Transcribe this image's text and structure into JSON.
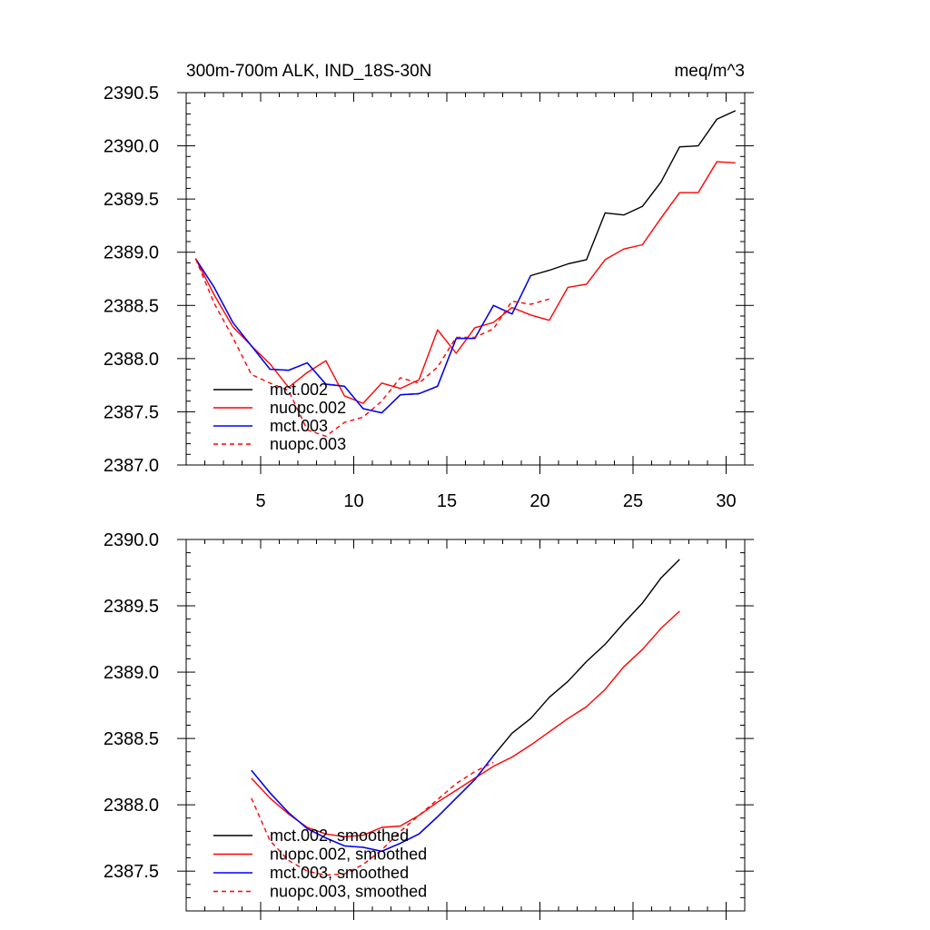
{
  "title_left": "300m-700m ALK, IND_18S-30N",
  "title_right": "meq/m^3",
  "chart_data": [
    {
      "type": "line",
      "title": "300m-700m ALK, IND_18S-30N",
      "units": "meq/m^3",
      "xlim": [
        1,
        31
      ],
      "ylim": [
        2387.0,
        2390.5
      ],
      "xticks": [
        5,
        10,
        15,
        20,
        25,
        30
      ],
      "xtick_labels": [
        "5",
        "10",
        "15",
        "20",
        "25",
        "30"
      ],
      "yticks": [
        2387.0,
        2387.5,
        2388.0,
        2388.5,
        2389.0,
        2389.5,
        2390.0,
        2390.5
      ],
      "ytick_labels": [
        "2387.0",
        "2387.5",
        "2388.0",
        "2388.5",
        "2389.0",
        "2389.5",
        "2390.0",
        "2390.5"
      ],
      "legend_position": "bottom-left",
      "series": [
        {
          "name": "mct.002",
          "color": "#000000",
          "dash": "solid",
          "x": [
            1.5,
            2.5,
            3.5,
            4.5,
            5.5,
            6.5,
            7.5,
            8.5,
            9.5,
            10.5,
            11.5,
            12.5,
            13.5,
            14.5,
            15.5,
            16.5,
            17.5,
            18.5,
            19.5,
            20.5,
            21.5,
            22.5,
            23.5,
            24.5,
            25.5,
            26.5,
            27.5,
            28.5,
            29.5,
            30.5
          ],
          "y": [
            2388.94,
            2388.67,
            2388.34,
            2388.12,
            2387.9,
            2387.89,
            2387.96,
            2387.76,
            2387.74,
            2387.53,
            2387.49,
            2387.66,
            2387.67,
            2387.74,
            2388.19,
            2388.19,
            2388.5,
            2388.42,
            2388.78,
            2388.83,
            2388.89,
            2388.93,
            2389.37,
            2389.35,
            2389.43,
            2389.66,
            2389.99,
            2390.0,
            2390.25,
            2390.33
          ]
        },
        {
          "name": "nuopc.002",
          "color": "#ff0000",
          "dash": "solid",
          "x": [
            1.5,
            2.5,
            3.5,
            4.5,
            5.5,
            6.5,
            7.5,
            8.5,
            9.5,
            10.5,
            11.5,
            12.5,
            13.5,
            14.5,
            15.5,
            16.5,
            17.5,
            18.5,
            19.5,
            20.5,
            21.5,
            22.5,
            23.5,
            24.5,
            25.5,
            26.5,
            27.5,
            28.5,
            29.5,
            30.5
          ],
          "y": [
            2388.94,
            2388.6,
            2388.3,
            2388.12,
            2387.95,
            2387.73,
            2387.87,
            2387.98,
            2387.65,
            2387.58,
            2387.77,
            2387.72,
            2387.8,
            2388.27,
            2388.05,
            2388.29,
            2388.34,
            2388.48,
            2388.41,
            2388.36,
            2388.67,
            2388.7,
            2388.93,
            2389.03,
            2389.07,
            2389.32,
            2389.56,
            2389.56,
            2389.85,
            2389.84
          ]
        },
        {
          "name": "mct.003",
          "color": "#0000ff",
          "dash": "solid",
          "x": [
            1.5,
            2.5,
            3.5,
            4.5,
            5.5,
            6.5,
            7.5,
            8.5,
            9.5,
            10.5,
            11.5,
            12.5,
            13.5,
            14.5,
            15.5,
            16.5,
            17.5,
            18.5,
            19.5
          ],
          "y": [
            2388.94,
            2388.67,
            2388.34,
            2388.12,
            2387.9,
            2387.89,
            2387.96,
            2387.76,
            2387.74,
            2387.53,
            2387.49,
            2387.66,
            2387.67,
            2387.74,
            2388.19,
            2388.19,
            2388.5,
            2388.42,
            2388.78
          ]
        },
        {
          "name": "nuopc.003",
          "color": "#ff0000",
          "dash": "dashed",
          "x": [
            1.5,
            2.5,
            3.5,
            4.5,
            5.5,
            6.5,
            7.5,
            8.5,
            9.5,
            10.5,
            11.5,
            12.5,
            13.5,
            14.5,
            15.5,
            16.5,
            17.5,
            18.5,
            19.5,
            20.5
          ],
          "y": [
            2388.94,
            2388.52,
            2388.2,
            2387.85,
            2387.77,
            2387.7,
            2387.33,
            2387.27,
            2387.4,
            2387.45,
            2387.6,
            2387.82,
            2387.77,
            2387.92,
            2388.2,
            2388.2,
            2388.28,
            2388.54,
            2388.51,
            2388.56
          ]
        }
      ]
    },
    {
      "type": "line",
      "xlim": [
        1,
        31
      ],
      "ylim": [
        2387.2,
        2390.0
      ],
      "xticks": [
        5,
        10,
        15,
        20,
        25,
        30
      ],
      "xtick_labels": [],
      "yticks": [
        2387.5,
        2388.0,
        2388.5,
        2389.0,
        2389.5,
        2390.0
      ],
      "ytick_labels": [
        "2387.5",
        "2388.0",
        "2388.5",
        "2389.0",
        "2389.5",
        "2390.0"
      ],
      "legend_position": "bottom-left",
      "series": [
        {
          "name": "mct.002, smoothed",
          "color": "#000000",
          "dash": "solid",
          "x": [
            4.5,
            5.5,
            6.5,
            7.5,
            8.5,
            9.5,
            10.5,
            11.5,
            12.5,
            13.5,
            14.5,
            15.5,
            16.5,
            17.5,
            18.5,
            19.5,
            20.5,
            21.5,
            22.5,
            23.5,
            24.5,
            25.5,
            26.5,
            27.5
          ],
          "y": [
            2388.26,
            2388.09,
            2387.94,
            2387.82,
            2387.75,
            2387.69,
            2387.68,
            2387.65,
            2387.71,
            2387.78,
            2387.91,
            2388.05,
            2388.19,
            2388.37,
            2388.54,
            2388.65,
            2388.81,
            2388.93,
            2389.08,
            2389.21,
            2389.37,
            2389.52,
            2389.71,
            2389.85
          ]
        },
        {
          "name": "nuopc.002, smoothed",
          "color": "#ff0000",
          "dash": "solid",
          "x": [
            4.5,
            5.5,
            6.5,
            7.5,
            8.5,
            9.5,
            10.5,
            11.5,
            12.5,
            13.5,
            14.5,
            15.5,
            16.5,
            17.5,
            18.5,
            19.5,
            20.5,
            21.5,
            22.5,
            23.5,
            24.5,
            25.5,
            26.5,
            27.5
          ],
          "y": [
            2388.2,
            2388.05,
            2387.93,
            2387.83,
            2387.78,
            2387.76,
            2387.77,
            2387.83,
            2387.84,
            2387.92,
            2388.02,
            2388.11,
            2388.2,
            2388.29,
            2388.36,
            2388.45,
            2388.55,
            2388.65,
            2388.74,
            2388.87,
            2389.04,
            2389.17,
            2389.33,
            2389.46
          ]
        },
        {
          "name": "mct.003, smoothed",
          "color": "#0000ff",
          "dash": "solid",
          "x": [
            4.5,
            5.5,
            6.5,
            7.5,
            8.5,
            9.5,
            10.5,
            11.5,
            12.5,
            13.5,
            14.5,
            15.5,
            16.5,
            17.5
          ],
          "y": [
            2388.26,
            2388.09,
            2387.94,
            2387.82,
            2387.75,
            2387.69,
            2387.68,
            2387.65,
            2387.71,
            2387.78,
            2387.91,
            2388.05,
            2388.19,
            2388.37
          ]
        },
        {
          "name": "nuopc.003, smoothed",
          "color": "#ff0000",
          "dash": "dashed",
          "x": [
            4.5,
            5.5,
            6.5,
            7.5,
            8.5,
            9.5,
            10.5,
            11.5,
            12.5,
            13.5,
            14.5,
            15.5,
            16.5,
            17.5
          ],
          "y": [
            2388.05,
            2387.73,
            2387.58,
            2387.5,
            2387.47,
            2387.48,
            2387.55,
            2387.66,
            2387.8,
            2387.92,
            2388.04,
            2388.16,
            2388.25,
            2388.32
          ]
        }
      ]
    }
  ]
}
